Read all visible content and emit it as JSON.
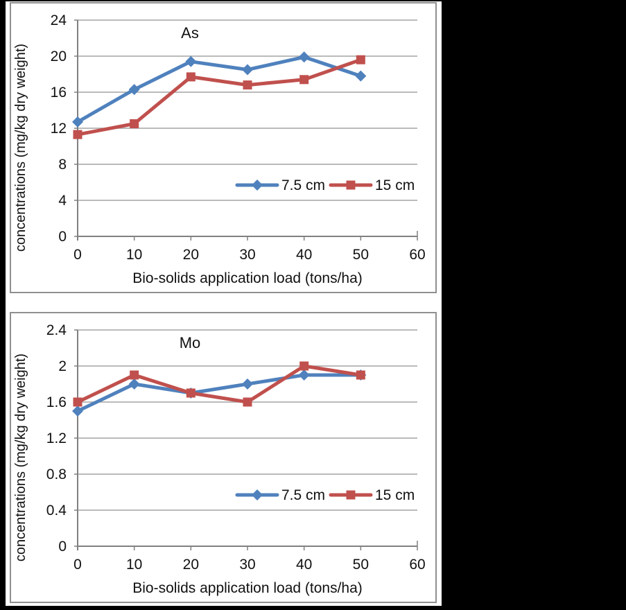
{
  "page": {
    "background": "#000000",
    "panel_background": "#ffffff",
    "panel_border_color": "#8f8f8f",
    "grid_color": "#a3a3a3",
    "axis_color": "#808080",
    "text_color": "#111111"
  },
  "chart_data": [
    {
      "type": "line",
      "title": "As",
      "ylabel": "concentrations (mg/kg dry weight)",
      "xlabel": "Bio-solids application load (tons/ha)",
      "xlim": [
        0,
        60
      ],
      "ylim": [
        0,
        24
      ],
      "grid": true,
      "legend_position": "inside-lower-right",
      "x_ticks": [
        "0",
        "10",
        "20",
        "30",
        "40",
        "50",
        "60"
      ],
      "y_ticks": [
        "0",
        "4",
        "8",
        "12",
        "16",
        "20",
        "24"
      ],
      "x": [
        0,
        10,
        20,
        30,
        40,
        50
      ],
      "series": [
        {
          "name": "7.5 cm",
          "color": "#4F81BD",
          "marker": "diamond",
          "values": [
            12.7,
            16.3,
            19.4,
            18.5,
            19.9,
            17.8
          ]
        },
        {
          "name": "15 cm",
          "color": "#C0504D",
          "marker": "square",
          "values": [
            11.3,
            12.5,
            17.7,
            16.8,
            17.4,
            19.6
          ]
        }
      ]
    },
    {
      "type": "line",
      "title": "Mo",
      "ylabel": "concentrations (mg/kg dry weight)",
      "xlabel": "Bio-solids application load (tons/ha)",
      "xlim": [
        0,
        60
      ],
      "ylim": [
        0,
        2.4
      ],
      "grid": true,
      "legend_position": "inside-lower-right",
      "x_ticks": [
        "0",
        "10",
        "20",
        "30",
        "40",
        "50",
        "60"
      ],
      "y_ticks": [
        "0",
        "0.4",
        "0.8",
        "1.2",
        "1.6",
        "2",
        "2.4"
      ],
      "x": [
        0,
        10,
        20,
        30,
        40,
        50
      ],
      "series": [
        {
          "name": "7.5 cm",
          "color": "#4F81BD",
          "marker": "diamond",
          "values": [
            1.5,
            1.8,
            1.7,
            1.8,
            1.9,
            1.9
          ]
        },
        {
          "name": "15 cm",
          "color": "#C0504D",
          "marker": "square",
          "values": [
            1.6,
            1.9,
            1.7,
            1.6,
            2.0,
            1.9
          ]
        }
      ]
    }
  ]
}
